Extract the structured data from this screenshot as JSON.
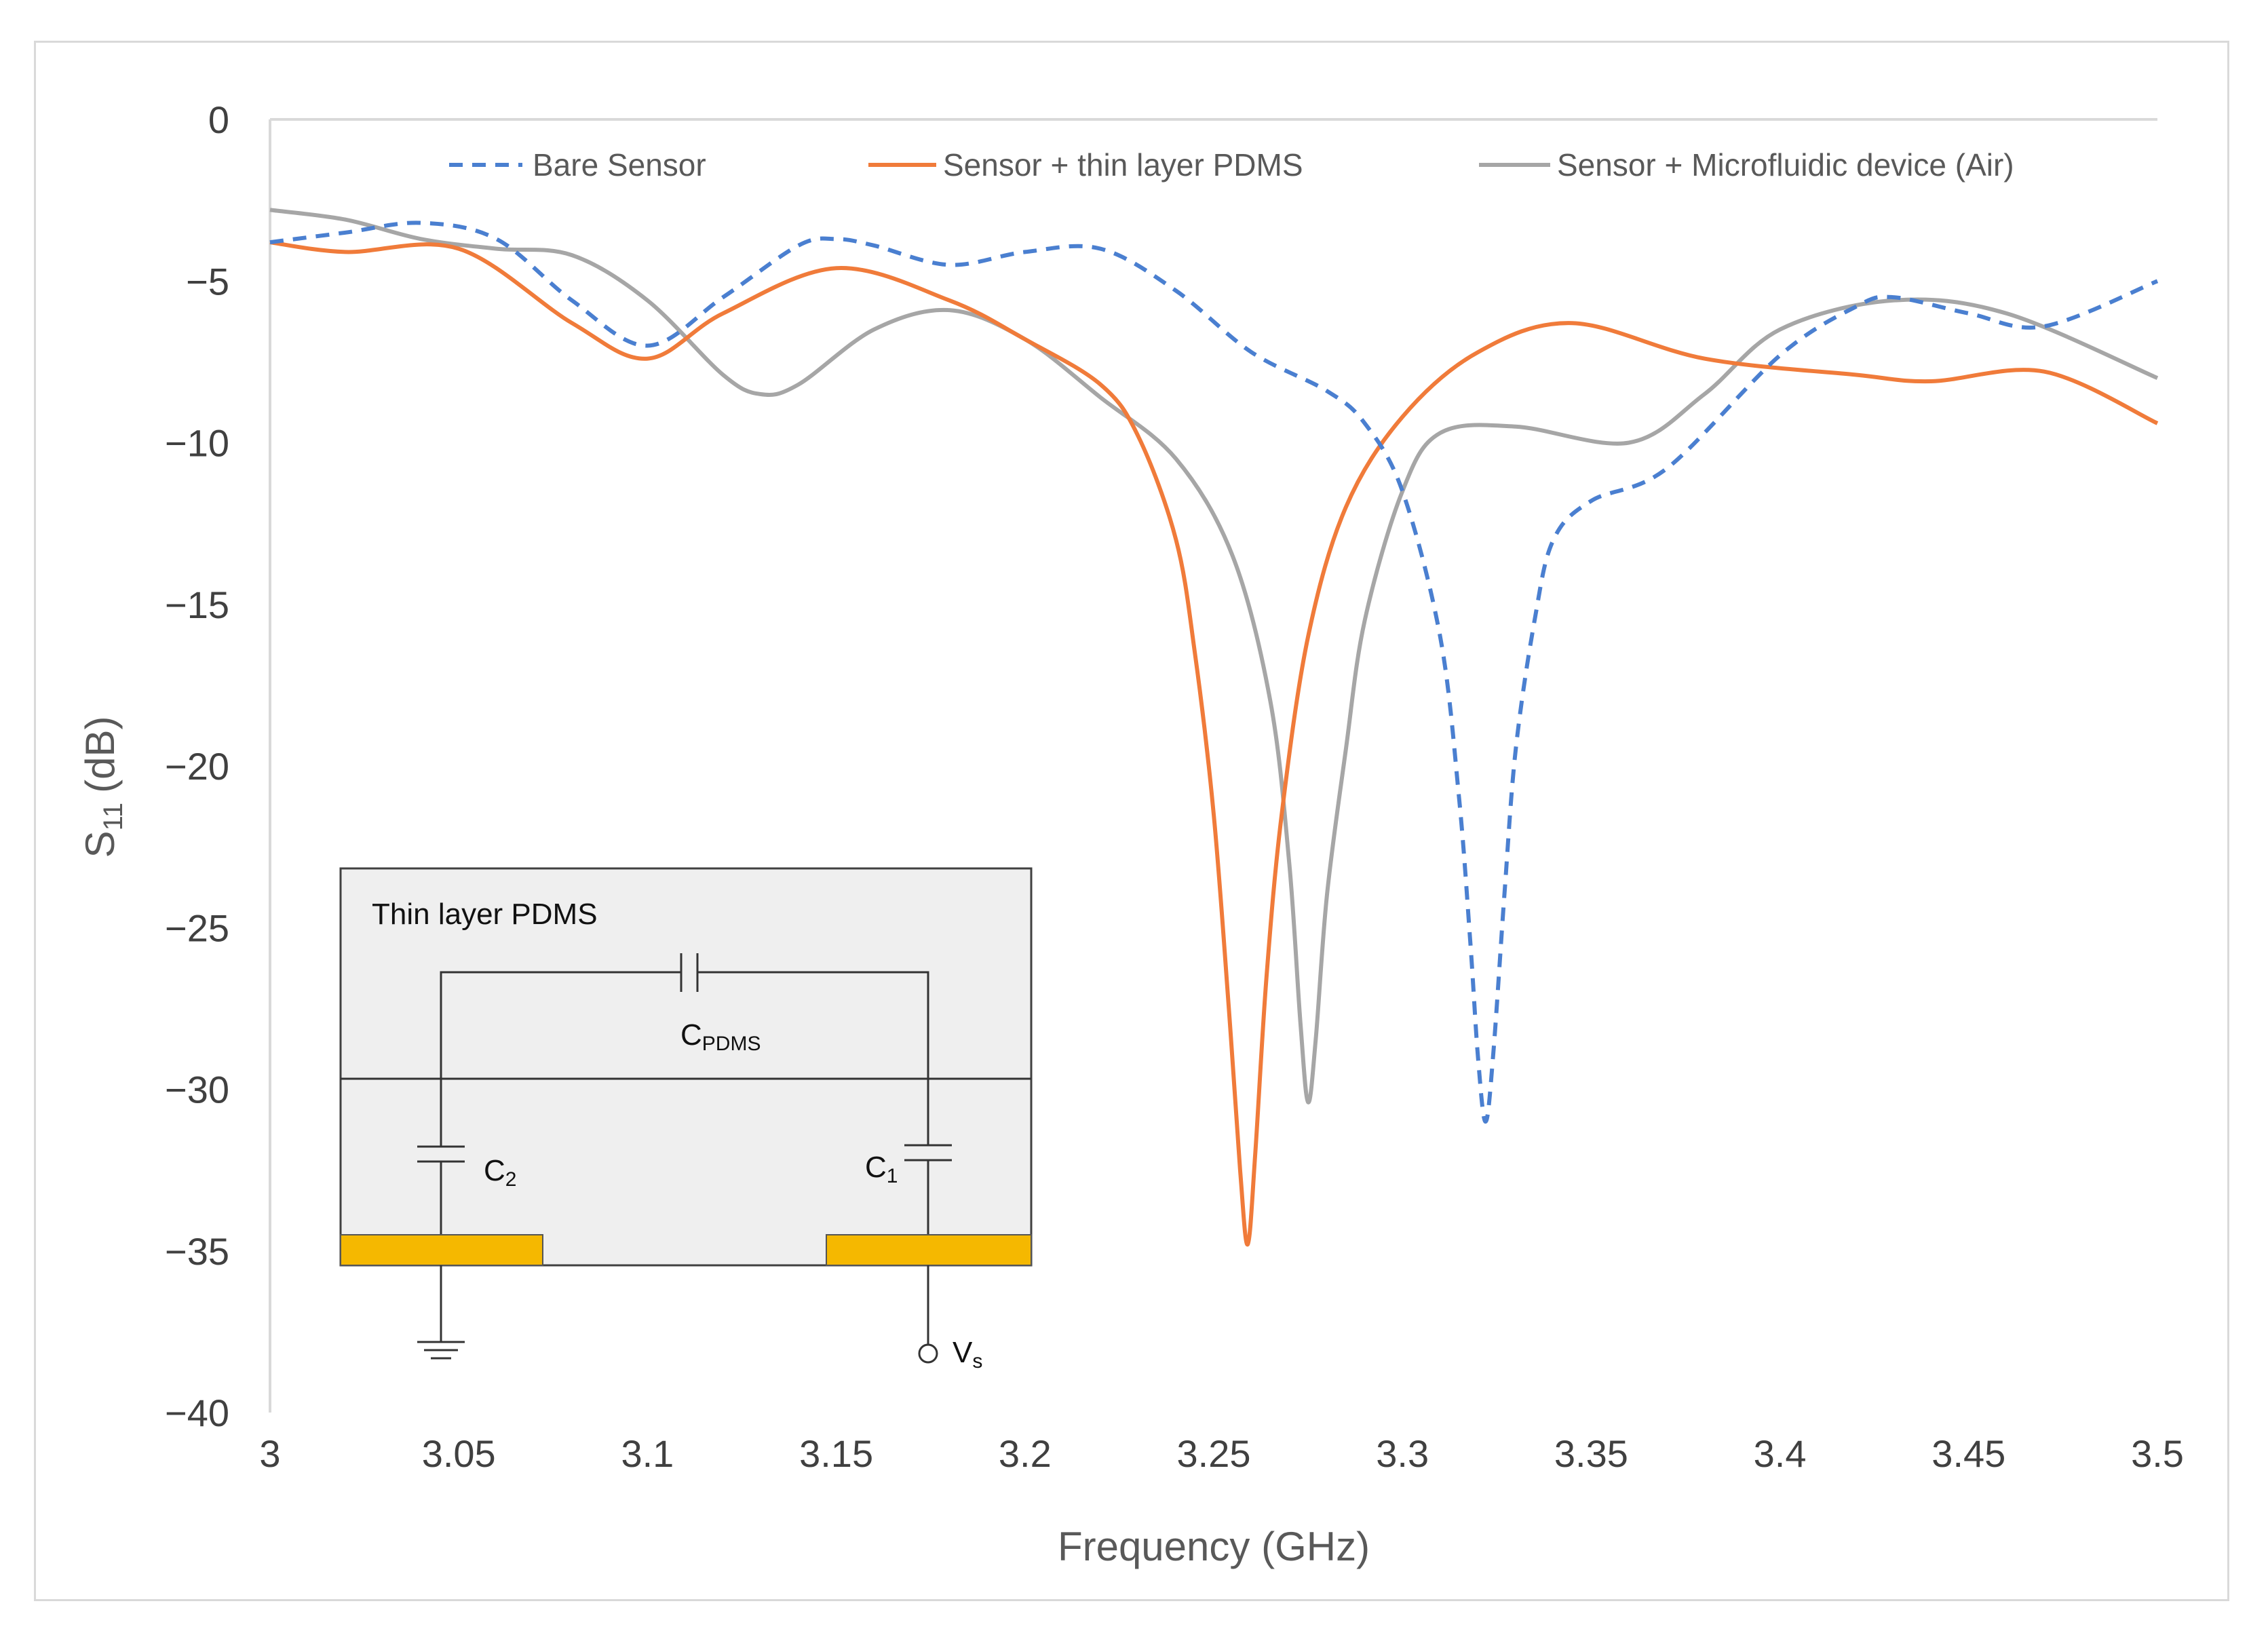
{
  "chart_data": {
    "type": "line",
    "title": "",
    "xlabel": "Frequency (GHz)",
    "ylabel_main": "S",
    "ylabel_sub": "11",
    "ylabel_unit": "(dB)",
    "xlim": [
      3.0,
      3.5
    ],
    "ylim": [
      -40,
      0
    ],
    "xticks": [
      3,
      3.05,
      3.1,
      3.15,
      3.2,
      3.25,
      3.3,
      3.35,
      3.4,
      3.45,
      3.5
    ],
    "xtick_labels": [
      "3",
      "3.05",
      "3.1",
      "3.15",
      "3.2",
      "3.25",
      "3.3",
      "3.35",
      "3.4",
      "3.45",
      "3.5"
    ],
    "yticks": [
      0,
      -5,
      -10,
      -15,
      -20,
      -25,
      -30,
      -35,
      -40
    ],
    "ytick_labels": [
      "0",
      "−5",
      "−10",
      "−15",
      "−20",
      "−25",
      "−30",
      "−35",
      "−40"
    ],
    "grid": false,
    "legend_position": "top",
    "series": [
      {
        "name": "Bare Sensor",
        "color": "#4a7fd0",
        "style": "dashed",
        "x": [
          3.0,
          3.02,
          3.04,
          3.06,
          3.08,
          3.1,
          3.12,
          3.14,
          3.15,
          3.16,
          3.18,
          3.2,
          3.22,
          3.24,
          3.26,
          3.28,
          3.29,
          3.3,
          3.31,
          3.315,
          3.318,
          3.32,
          3.322,
          3.324,
          3.327,
          3.33,
          3.335,
          3.34,
          3.35,
          3.37,
          3.4,
          3.42,
          3.43,
          3.45,
          3.47,
          3.5
        ],
        "y": [
          -3.8,
          -3.5,
          -3.2,
          -3.7,
          -5.6,
          -7.0,
          -5.5,
          -3.9,
          -3.7,
          -3.9,
          -4.5,
          -4.1,
          -4.0,
          -5.3,
          -7.2,
          -8.4,
          -9.4,
          -11.5,
          -16.0,
          -21.0,
          -25.5,
          -29.0,
          -31.0,
          -29.0,
          -24.0,
          -19.5,
          -15.5,
          -13.0,
          -11.8,
          -10.8,
          -7.3,
          -5.8,
          -5.5,
          -6.0,
          -6.4,
          -5.0
        ]
      },
      {
        "name": "Sensor + thin layer PDMS",
        "color": "#f07b3a",
        "style": "solid",
        "x": [
          3.0,
          3.02,
          3.05,
          3.08,
          3.1,
          3.12,
          3.15,
          3.18,
          3.2,
          3.22,
          3.23,
          3.24,
          3.245,
          3.25,
          3.254,
          3.257,
          3.259,
          3.261,
          3.264,
          3.268,
          3.275,
          3.285,
          3.3,
          3.32,
          3.345,
          3.38,
          3.42,
          3.44,
          3.47,
          3.5
        ],
        "y": [
          -3.8,
          -4.1,
          -4.0,
          -6.3,
          -7.4,
          -6.0,
          -4.6,
          -5.6,
          -6.8,
          -8.2,
          -9.8,
          -13.0,
          -16.5,
          -21.5,
          -27.5,
          -32.5,
          -34.8,
          -32.0,
          -26.5,
          -21.5,
          -16.0,
          -12.0,
          -9.2,
          -7.2,
          -6.3,
          -7.4,
          -7.9,
          -8.1,
          -7.8,
          -9.4
        ]
      },
      {
        "name": "Sensor + Microfluidic device (Air)",
        "color": "#a6a6a6",
        "style": "solid",
        "x": [
          3.0,
          3.02,
          3.04,
          3.06,
          3.08,
          3.1,
          3.12,
          3.13,
          3.14,
          3.16,
          3.18,
          3.2,
          3.22,
          3.24,
          3.255,
          3.265,
          3.27,
          3.273,
          3.275,
          3.277,
          3.28,
          3.285,
          3.29,
          3.3,
          3.31,
          3.33,
          3.36,
          3.38,
          3.4,
          3.43,
          3.46,
          3.5
        ],
        "y": [
          -2.8,
          -3.1,
          -3.7,
          -4.0,
          -4.2,
          -5.6,
          -7.9,
          -8.5,
          -8.2,
          -6.5,
          -5.9,
          -6.8,
          -8.6,
          -10.5,
          -13.5,
          -18.0,
          -23.0,
          -28.0,
          -30.4,
          -28.5,
          -24.0,
          -19.5,
          -15.5,
          -11.5,
          -9.7,
          -9.5,
          -10.0,
          -8.5,
          -6.5,
          -5.6,
          -6.0,
          -8.0
        ]
      }
    ]
  },
  "inset": {
    "title": "Thin layer PDMS",
    "c_pdms_main": "C",
    "c_pdms_sub": "PDMS",
    "c2_main": "C",
    "c2_sub": "2",
    "c1_main": "C",
    "c1_sub": "1",
    "vs_main": "V",
    "vs_sub": "s",
    "box_color": "#efefef",
    "electrode_color": "#f5b800"
  }
}
